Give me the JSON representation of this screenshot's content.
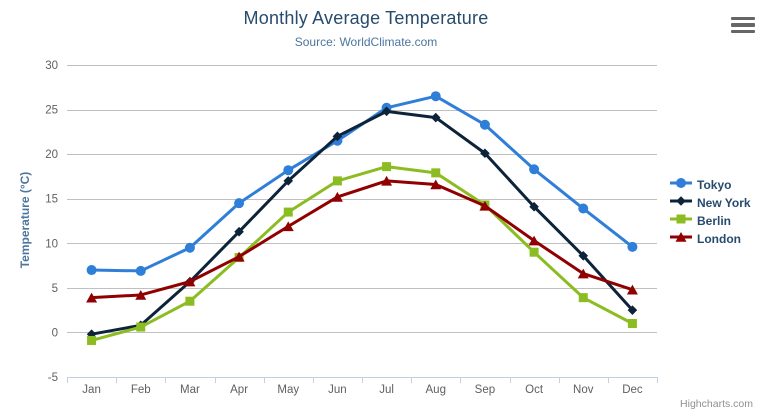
{
  "chart": {
    "title": "Monthly Average Temperature",
    "subtitle": "Source: WorldClimate.com",
    "credits": "Highcharts.com"
  },
  "icons": {
    "context_menu": "hamburger-menu-icon"
  },
  "chart_data": {
    "type": "line",
    "title": "Monthly Average Temperature",
    "subtitle": "Source: WorldClimate.com",
    "categories": [
      "Jan",
      "Feb",
      "Mar",
      "Apr",
      "May",
      "Jun",
      "Jul",
      "Aug",
      "Sep",
      "Oct",
      "Nov",
      "Dec"
    ],
    "series": [
      {
        "name": "Tokyo",
        "color": "#2f7ed8",
        "marker": "circle",
        "values": [
          7.0,
          6.9,
          9.5,
          14.5,
          18.2,
          21.5,
          25.2,
          26.5,
          23.3,
          18.3,
          13.9,
          9.6
        ]
      },
      {
        "name": "New York",
        "color": "#0d233a",
        "marker": "diamond",
        "values": [
          -0.2,
          0.8,
          5.7,
          11.3,
          17.0,
          22.0,
          24.8,
          24.1,
          20.1,
          14.1,
          8.6,
          2.5
        ]
      },
      {
        "name": "Berlin",
        "color": "#8bbc21",
        "marker": "square",
        "values": [
          -0.9,
          0.6,
          3.5,
          8.4,
          13.5,
          17.0,
          18.6,
          17.9,
          14.3,
          9.0,
          3.9,
          1.0
        ]
      },
      {
        "name": "London",
        "color": "#910000",
        "marker": "triangle",
        "values": [
          3.9,
          4.2,
          5.7,
          8.5,
          11.9,
          15.2,
          17.0,
          16.6,
          14.2,
          10.3,
          6.6,
          4.8
        ]
      }
    ],
    "xlabel": "",
    "ylabel": "Temperature (°C)",
    "ylim": [
      -5,
      30
    ],
    "yticks": [
      -5,
      0,
      5,
      10,
      15,
      20,
      25,
      30
    ],
    "grid": true,
    "legend_position": "right",
    "colors": {
      "gridline": "#c0c0c0",
      "axis_line": "#c0d0e0",
      "tick_label": "#606060",
      "title": "#274b6d",
      "subtitle": "#4d759e",
      "legend_text": "#274b6d"
    }
  }
}
